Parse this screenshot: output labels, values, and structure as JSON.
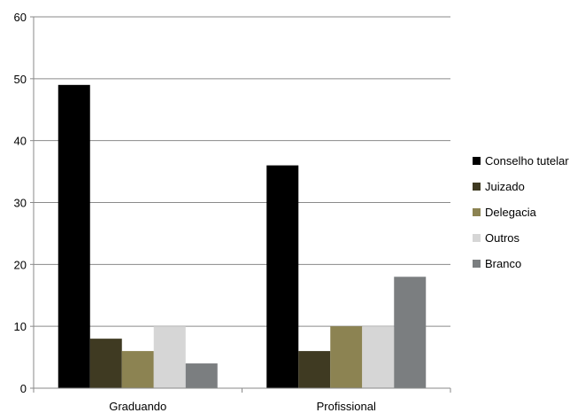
{
  "chart_data": {
    "type": "bar",
    "categories": [
      "Graduando",
      "Profissional"
    ],
    "series": [
      {
        "name": "Conselho tutelar",
        "values": [
          49,
          36
        ],
        "color": "#000000"
      },
      {
        "name": "Juizado",
        "values": [
          8,
          6
        ],
        "color": "#3f3a22"
      },
      {
        "name": "Delegacia",
        "values": [
          6,
          10
        ],
        "color": "#8c8352"
      },
      {
        "name": "Outros",
        "values": [
          10,
          10
        ],
        "color": "#d6d6d6"
      },
      {
        "name": "Branco",
        "values": [
          4,
          18
        ],
        "color": "#7b7e80"
      }
    ],
    "ylim": [
      0,
      60
    ],
    "yticks": [
      "0",
      "10",
      "20",
      "30",
      "40",
      "50",
      "60"
    ],
    "grid": true,
    "legend_position": "right"
  }
}
